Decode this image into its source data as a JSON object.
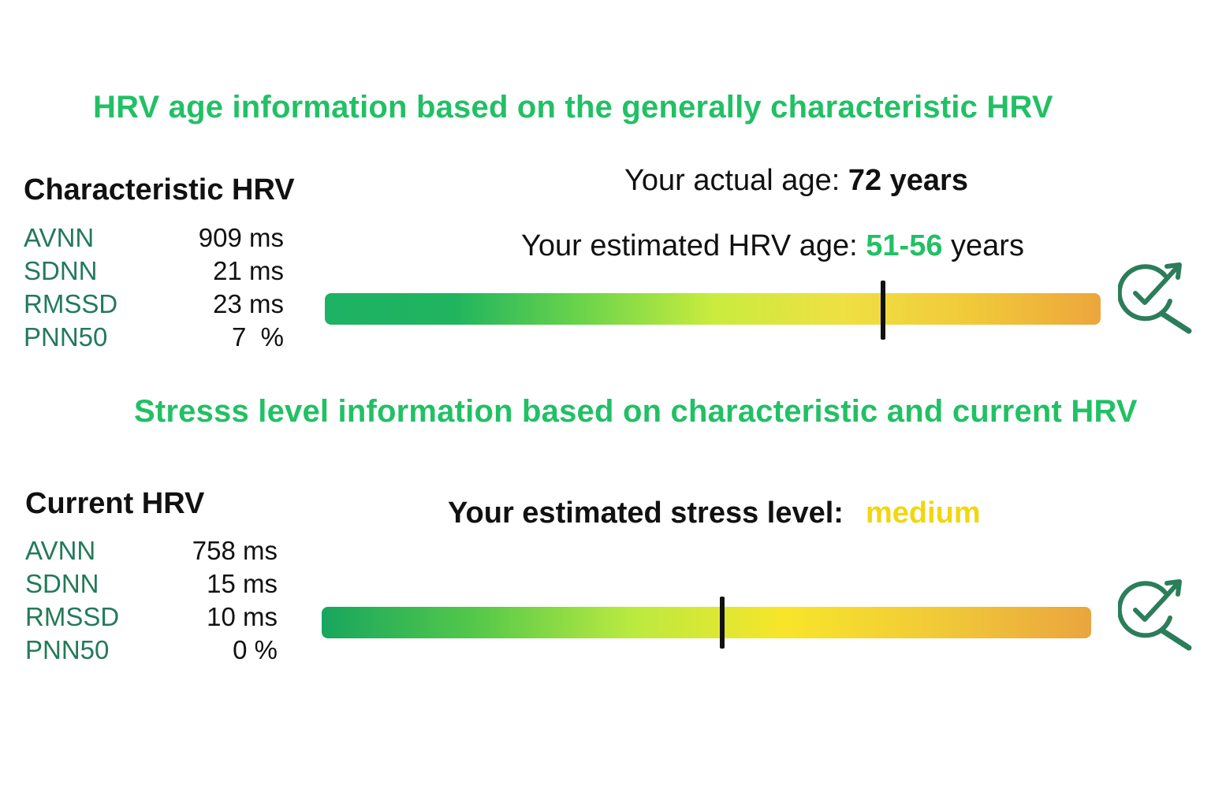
{
  "age_section": {
    "heading": "HRV age information based on the generally characteristic HRV",
    "panel_title": "Characteristic HRV",
    "metrics": [
      {
        "name": "AVNN",
        "value": "909 ms"
      },
      {
        "name": "SDNN",
        "value": "21 ms"
      },
      {
        "name": "RMSSD",
        "value": "23 ms"
      },
      {
        "name": "PNN50",
        "value": "7  %"
      }
    ],
    "actual_age_label": "Your actual age: ",
    "actual_age_value": "72 years",
    "estimated_age_label": "Your estimated HRV age: ",
    "estimated_age_value": "51-56",
    "estimated_age_unit": " years",
    "gauge_marker_fraction": 0.72,
    "icon": "search-check-icon"
  },
  "stress_section": {
    "heading": "Stresss level information based on characteristic and current HRV",
    "panel_title": "Current HRV",
    "metrics": [
      {
        "name": "AVNN",
        "value": "758 ms"
      },
      {
        "name": "SDNN",
        "value": "15 ms"
      },
      {
        "name": "RMSSD",
        "value": "10 ms"
      },
      {
        "name": "PNN50",
        "value": "0 %"
      }
    ],
    "stress_label": "Your estimated stress level:",
    "stress_value": "medium",
    "gauge_marker_fraction": 0.52,
    "icon": "search-check-icon"
  },
  "colors": {
    "heading_green": "#22c065",
    "metric_label": "#237a5a",
    "highlight_green": "#22c065",
    "stress_yellow": "#f2d60f",
    "icon_stroke": "#2c7d5a",
    "gauge_age": [
      "#1db264",
      "#20b45f",
      "#6cd44a",
      "#c9ec3e",
      "#efe043",
      "#f1c93a",
      "#eca63c"
    ],
    "gauge_stress": [
      "#17a65e",
      "#55c84a",
      "#b9ea40",
      "#f8e52a",
      "#f1ca38",
      "#eaa53e"
    ]
  }
}
